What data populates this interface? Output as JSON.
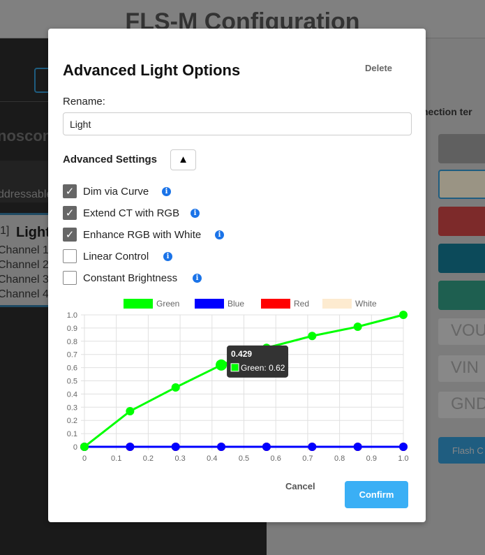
{
  "background": {
    "title": "FLS-M Configuration",
    "left_text_1": "noscon",
    "left_text_2": "ddressable",
    "light_index": "1]",
    "light_name": "Light",
    "channels": [
      "Channel 1:",
      "Channel 2:",
      "Channel 3:",
      "Channel 4:"
    ],
    "right_header": "nection ter",
    "pins": [
      "VOU",
      "VIN",
      "GND"
    ],
    "flash_button": "Flash C",
    "swatch_colors": [
      "#606060",
      "#9a9484",
      "#7d2a2a",
      "#0c4a5a",
      "#1e5f50"
    ]
  },
  "modal": {
    "title": "Advanced Light Options",
    "delete_label": "Delete",
    "rename_label": "Rename:",
    "rename_value": "Light",
    "advanced_label": "Advanced Settings",
    "toggle_icon": "▲",
    "options": [
      {
        "label": "Dim via Curve",
        "checked": true
      },
      {
        "label": "Extend CT with RGB",
        "checked": true
      },
      {
        "label": "Enhance RGB with White",
        "checked": true
      },
      {
        "label": "Linear Control",
        "checked": false
      },
      {
        "label": "Constant Brightness",
        "checked": false
      }
    ],
    "cancel_label": "Cancel",
    "confirm_label": "Confirm"
  },
  "chart_data": {
    "type": "line",
    "x": [
      0,
      0.143,
      0.286,
      0.429,
      0.571,
      0.714,
      0.857,
      1.0
    ],
    "series": [
      {
        "name": "Green",
        "color": "#00ff00",
        "values": [
          0,
          0.27,
          0.45,
          0.62,
          0.75,
          0.84,
          0.91,
          1.0
        ]
      },
      {
        "name": "Blue",
        "color": "#0000ff",
        "values": [
          0,
          0,
          0,
          0,
          0,
          0,
          0,
          0
        ]
      },
      {
        "name": "Red",
        "color": "#ff0000",
        "values": [
          0,
          0,
          0,
          0,
          0,
          0,
          0,
          0
        ]
      },
      {
        "name": "White",
        "color": "#fdebd0",
        "values": [
          0,
          0,
          0,
          0,
          0,
          0,
          0,
          0
        ]
      }
    ],
    "xlim": [
      0,
      1
    ],
    "ylim": [
      0,
      1
    ],
    "xticks": [
      "0",
      "0.1",
      "0.2",
      "0.3",
      "0.4",
      "0.5",
      "0.6",
      "0.7",
      "0.8",
      "0.9",
      "1.0"
    ],
    "yticks": [
      "0",
      "0.1",
      "0.2",
      "0.3",
      "0.4",
      "0.5",
      "0.6",
      "0.7",
      "0.8",
      "0.9",
      "1.0"
    ],
    "grid": true,
    "legend": "top",
    "tooltip": {
      "title": "0.429",
      "label": "Green: 0.62"
    }
  }
}
